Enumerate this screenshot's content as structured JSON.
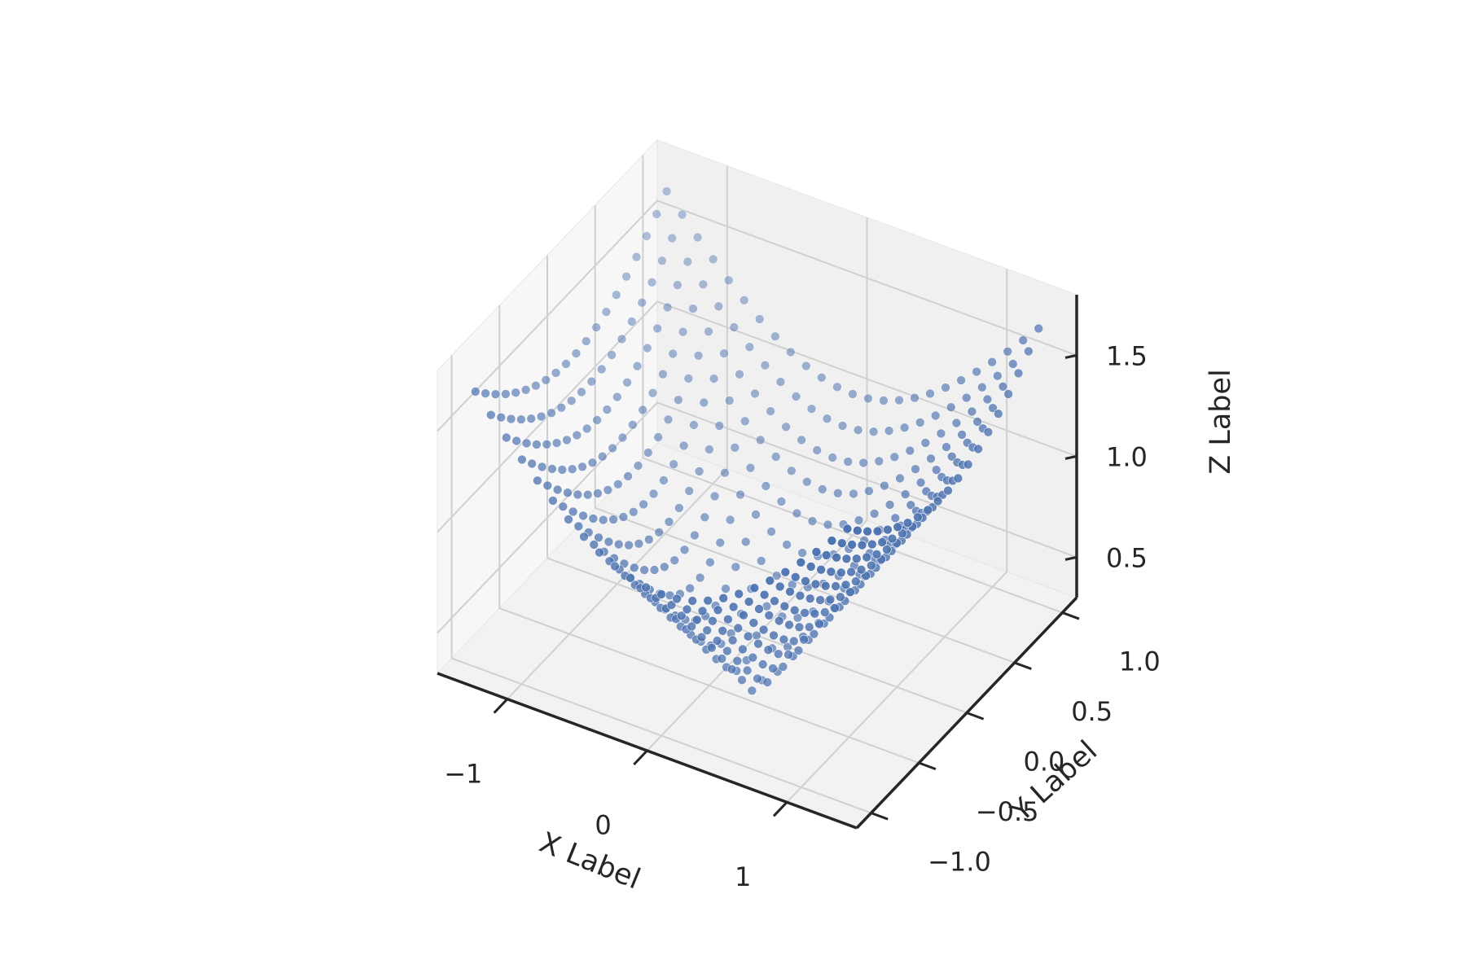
{
  "chart_data": {
    "type": "scatter",
    "projection": "3d",
    "title": "",
    "xlabel": "X Label",
    "ylabel": "Y Label",
    "zlabel": "Z Label",
    "xlim": [
      -1.5,
      1.5
    ],
    "ylim": [
      -1.15,
      1.15
    ],
    "zlim": [
      0.3,
      1.8
    ],
    "xticks": [
      -1,
      0,
      1
    ],
    "yticks": [
      -1.0,
      -0.5,
      0.0,
      0.5,
      1.0
    ],
    "zticks": [
      0.5,
      1.0,
      1.5
    ],
    "xtick_labels": [
      "−1",
      "0",
      "1"
    ],
    "ytick_labels": [
      "−1.0",
      "−0.5",
      "0.0",
      "0.5",
      "1.0"
    ],
    "ztick_labels": [
      "0.5",
      "1.0",
      "1.5"
    ],
    "grid": true,
    "series": [
      {
        "marker_color": "#4c72b0",
        "x_grid": {
          "start": -1.33,
          "stop": 1.33,
          "count": 25
        },
        "y_grid": {
          "start": -1.0,
          "stop": 1.0,
          "count": 20
        },
        "z_function": "sqrt(x^2 + y^2)"
      }
    ]
  }
}
